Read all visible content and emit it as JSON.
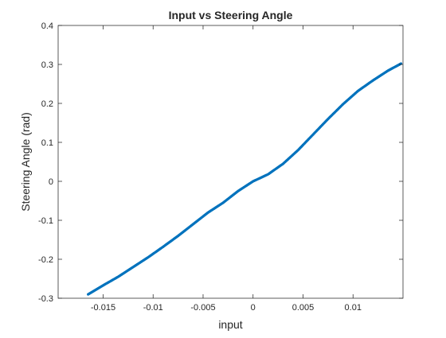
{
  "chart_data": {
    "type": "scatter",
    "title": "Input vs Steering Angle",
    "xlabel": "input",
    "ylabel": "Steering Angle (rad)",
    "xlim": [
      -0.0195,
      0.015
    ],
    "ylim": [
      -0.3,
      0.4
    ],
    "xticks": [
      -0.015,
      -0.01,
      -0.005,
      0,
      0.005,
      0.01
    ],
    "xtick_labels": [
      "-0.015",
      "-0.01",
      "-0.005",
      "0",
      "0.005",
      "0.01"
    ],
    "yticks": [
      -0.3,
      -0.2,
      -0.1,
      0,
      0.1,
      0.2,
      0.3,
      0.4
    ],
    "ytick_labels": [
      "-0.3",
      "-0.2",
      "-0.1",
      "0",
      "0.1",
      "0.2",
      "0.3",
      "0.4"
    ],
    "grid": false,
    "box": true,
    "marker_color": "#0072BD",
    "series": [
      {
        "x": [
          -0.0165,
          -0.015,
          -0.0135,
          -0.012,
          -0.0105,
          -0.009,
          -0.0075,
          -0.006,
          -0.0045,
          -0.003,
          -0.0015,
          0,
          0.0015,
          0.003,
          0.0045,
          0.006,
          0.0075,
          0.009,
          0.0105,
          0.012,
          0.0135,
          0.0148
        ],
        "y": [
          -0.29,
          -0.267,
          -0.245,
          -0.22,
          -0.195,
          -0.168,
          -0.14,
          -0.11,
          -0.08,
          -0.055,
          -0.025,
          0.0,
          0.018,
          0.045,
          0.08,
          0.12,
          0.16,
          0.198,
          0.232,
          0.259,
          0.284,
          0.302
        ]
      }
    ]
  }
}
